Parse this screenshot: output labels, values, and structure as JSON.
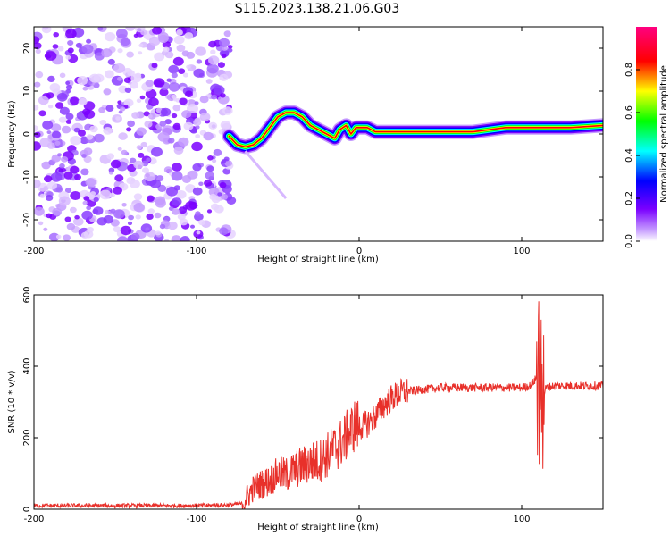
{
  "title": "S115.2023.138.21.06.G03",
  "chart_data": [
    {
      "type": "heatmap",
      "title": "S115.2023.138.21.06.G03",
      "xlabel": "Height of straight line (km)",
      "ylabel": "Frequency (Hz)",
      "xlim": [
        -200,
        150
      ],
      "ylim": [
        -25,
        25
      ],
      "xticks": [
        -200,
        -100,
        0,
        100
      ],
      "yticks": [
        -20,
        -10,
        0,
        10,
        20
      ],
      "noise_region_x": [
        -200,
        -78
      ],
      "ridge": {
        "x": [
          -80,
          -75,
          -70,
          -65,
          -60,
          -55,
          -50,
          -45,
          -40,
          -35,
          -30,
          -25,
          -20,
          -15,
          -12,
          -8,
          -5,
          -2,
          0,
          5,
          10,
          30,
          50,
          70,
          90,
          110,
          130,
          150
        ],
        "y": [
          -0.5,
          -2.5,
          -3,
          -2.5,
          -1,
          1.5,
          4,
          5,
          5,
          4,
          2,
          1,
          0,
          -1,
          1,
          2,
          0,
          1.5,
          1.5,
          1.5,
          0.5,
          0.5,
          0.5,
          0.5,
          1.5,
          1.5,
          1.5,
          2
        ]
      },
      "colorbar": {
        "label": "Normalized spectral amplitude",
        "range": [
          0,
          1
        ],
        "ticks": [
          0.0,
          0.2,
          0.4,
          0.6,
          0.8
        ],
        "tick_labels": [
          "0.0",
          "0.2",
          "0.4",
          "0.6",
          "0.8"
        ],
        "colors": [
          "#ffffff",
          "#7a00ff",
          "#0000ff",
          "#00ffff",
          "#00ff00",
          "#ffff00",
          "#ff0000",
          "#ff0080"
        ]
      }
    },
    {
      "type": "line",
      "xlabel": "Height of straight line (km)",
      "ylabel": "SNR (10 * v/v)",
      "xlim": [
        -200,
        150
      ],
      "ylim": [
        0,
        600
      ],
      "xticks": [
        -200,
        -100,
        0,
        100
      ],
      "yticks": [
        0,
        200,
        400,
        600
      ],
      "series": [
        {
          "name": "SNR",
          "color": "#e8302a",
          "x": [
            -200,
            -150,
            -100,
            -80,
            -72,
            -68,
            -65,
            -60,
            -55,
            -50,
            -45,
            -40,
            -35,
            -30,
            -25,
            -20,
            -15,
            -10,
            -5,
            -2,
            0,
            5,
            10,
            15,
            20,
            25,
            30,
            40,
            50,
            60,
            70,
            80,
            90,
            100,
            105,
            108,
            110,
            112,
            115,
            120,
            130,
            140,
            150
          ],
          "y": [
            10,
            10,
            10,
            12,
            15,
            40,
            60,
            70,
            80,
            100,
            95,
            110,
            120,
            130,
            135,
            150,
            170,
            190,
            220,
            240,
            230,
            240,
            260,
            290,
            310,
            325,
            330,
            335,
            340,
            340,
            340,
            340,
            340,
            340,
            345,
            360,
            380,
            300,
            340,
            345,
            345,
            345,
            345
          ]
        }
      ]
    }
  ]
}
